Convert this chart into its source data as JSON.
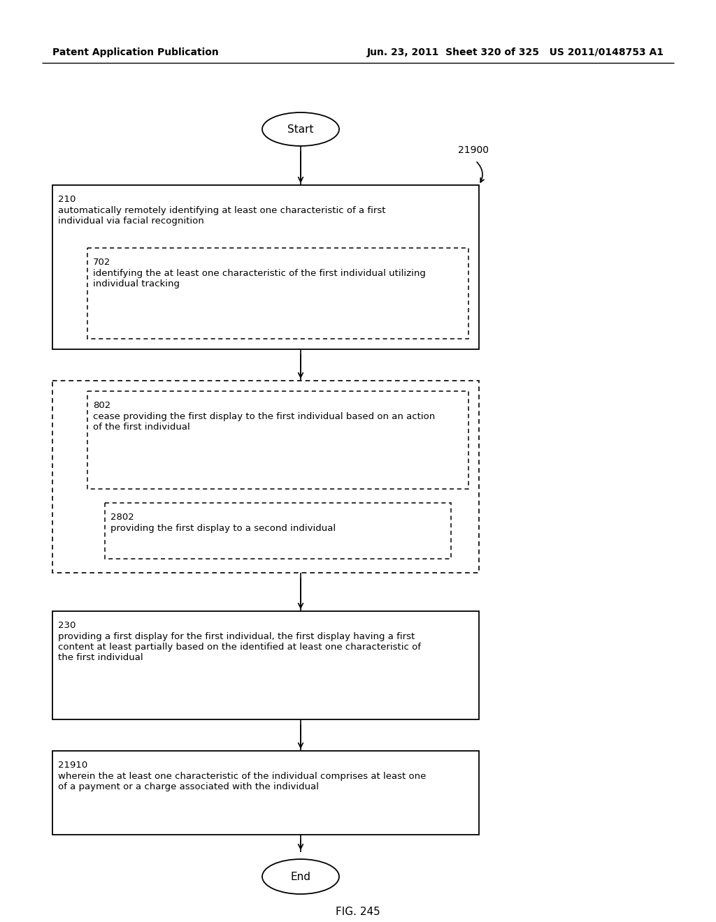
{
  "header_left": "Patent Application Publication",
  "header_right": "Jun. 23, 2011  Sheet 320 of 325   US 2011/0148753 A1",
  "figure_label": "FIG. 245",
  "ref_label": "21900",
  "start_label": "Start",
  "end_label": "End",
  "background_color": "#ffffff",
  "font_size_header": 10,
  "font_size_box_num": 9.5,
  "font_size_box_text": 9.5,
  "font_size_terminal": 11,
  "font_size_fig": 11
}
